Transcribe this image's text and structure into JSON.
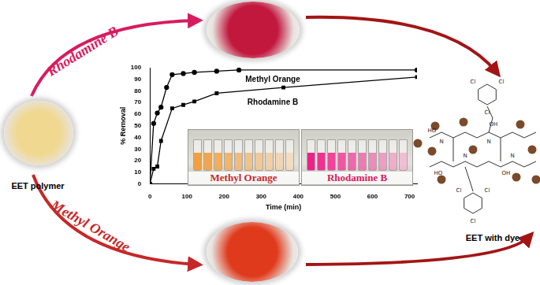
{
  "chart_data": {
    "type": "line",
    "x_label": "Time (min)",
    "y_label": "% Removal",
    "xlim": [
      0,
      720
    ],
    "xticks": [
      0,
      100,
      200,
      300,
      400,
      500,
      600,
      700
    ],
    "ylim": [
      0,
      100
    ],
    "yticks": [
      0,
      10,
      20,
      30,
      40,
      50,
      60,
      70,
      80,
      90,
      100
    ],
    "grid": false,
    "marker": "circle",
    "series": [
      {
        "name": "Methyl Orange",
        "color": "#000000",
        "x": [
          0,
          10,
          20,
          30,
          45,
          60,
          90,
          120,
          180,
          240,
          720
        ],
        "values": [
          0,
          52,
          61,
          66,
          83,
          94,
          95,
          96,
          97,
          98,
          98
        ]
      },
      {
        "name": "Rhodamine B",
        "color": "#000000",
        "marker": "square",
        "x": [
          0,
          10,
          20,
          30,
          60,
          90,
          120,
          180,
          360,
          720
        ],
        "values": [
          0,
          13,
          15,
          37,
          65,
          68,
          71,
          78,
          83,
          92
        ]
      }
    ]
  },
  "diagram": {
    "nodes": [
      {
        "label": "EET polymer",
        "color": "#f0d890"
      },
      {
        "label": "EET with dye",
        "color": "#7a4a2a"
      }
    ],
    "arrows": [
      {
        "label": "Rhodamine B",
        "color": "#d81b60"
      },
      {
        "label": "Methyl Orange",
        "color": "#c62828"
      }
    ],
    "photos": [
      {
        "color": "#c2183e"
      },
      {
        "color": "#e03a1c"
      }
    ],
    "insets": [
      {
        "label": "Methyl Orange",
        "color": "#c62828",
        "liquid": "#f0a040"
      },
      {
        "label": "Rhodamine B",
        "color": "#d81b60",
        "liquid": "#f0208a"
      }
    ],
    "structure_labels": [
      "Cl",
      "Cl",
      "Cl",
      "Cl",
      "Cl",
      "Cl",
      "OH",
      "HO",
      "OH",
      "HO",
      "N",
      "N",
      "N",
      "N"
    ]
  }
}
